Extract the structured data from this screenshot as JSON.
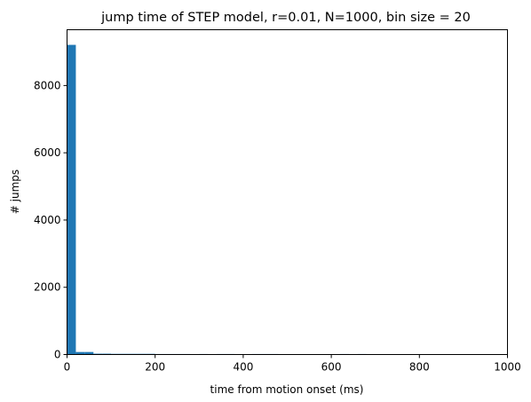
{
  "chart_data": {
    "type": "bar",
    "title": "jump time of STEP model, r=0.01, N=1000, bin size = 20",
    "xlabel": "time from motion onset (ms)",
    "ylabel": "# jumps",
    "xlim": [
      0,
      1000
    ],
    "ylim": [
      0,
      9660
    ],
    "xticks": [
      0,
      200,
      400,
      600,
      800,
      1000
    ],
    "yticks": [
      0,
      2000,
      4000,
      6000,
      8000
    ],
    "bar_color": "#1f77b4",
    "bin_size": 20,
    "bins": [
      {
        "start": 0,
        "end": 20,
        "value": 9210
      },
      {
        "start": 20,
        "end": 40,
        "value": 75
      },
      {
        "start": 40,
        "end": 60,
        "value": 75
      },
      {
        "start": 60,
        "end": 80,
        "value": 25
      },
      {
        "start": 80,
        "end": 100,
        "value": 25
      },
      {
        "start": 100,
        "end": 120,
        "value": 20
      },
      {
        "start": 120,
        "end": 140,
        "value": 20
      },
      {
        "start": 140,
        "end": 160,
        "value": 20
      },
      {
        "start": 160,
        "end": 180,
        "value": 20
      },
      {
        "start": 180,
        "end": 200,
        "value": 20
      },
      {
        "start": 200,
        "end": 220,
        "value": 15
      },
      {
        "start": 220,
        "end": 240,
        "value": 15
      },
      {
        "start": 240,
        "end": 260,
        "value": 15
      },
      {
        "start": 260,
        "end": 280,
        "value": 15
      },
      {
        "start": 300,
        "end": 320,
        "value": 15
      },
      {
        "start": 340,
        "end": 360,
        "value": 15
      },
      {
        "start": 360,
        "end": 380,
        "value": 15
      },
      {
        "start": 420,
        "end": 440,
        "value": 15
      },
      {
        "start": 440,
        "end": 460,
        "value": 15
      },
      {
        "start": 460,
        "end": 480,
        "value": 15
      },
      {
        "start": 620,
        "end": 640,
        "value": 15
      },
      {
        "start": 660,
        "end": 680,
        "value": 15
      }
    ]
  }
}
